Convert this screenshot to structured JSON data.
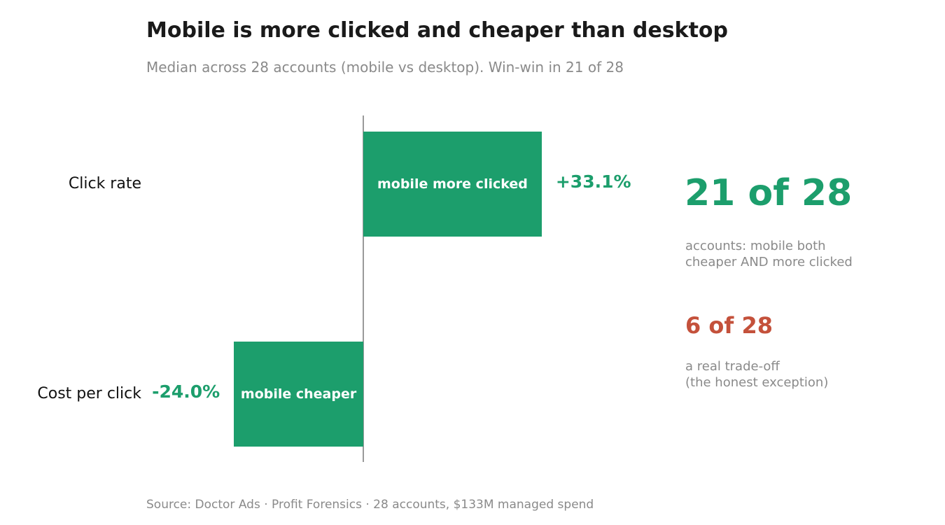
{
  "colors": {
    "positive": "#1c9e6c",
    "exception": "#c4513b",
    "muted": "#8a8a8a",
    "axis": "#9a9a9a"
  },
  "header": {
    "title": "Mobile is more clicked and cheaper than desktop",
    "subtitle": "Median across 28 accounts (mobile vs desktop). Win-win in 21 of 28"
  },
  "chart_data": {
    "type": "bar",
    "orientation": "horizontal",
    "categories": [
      "Click rate",
      "Cost per click"
    ],
    "values": [
      33.1,
      -24.0
    ],
    "value_labels": [
      "+33.1%",
      "-24.0%"
    ],
    "bar_labels": [
      "mobile more clicked",
      "mobile cheaper"
    ],
    "unit": "%",
    "xlim": [
      -50,
      50
    ],
    "grid": false
  },
  "summary": {
    "winwin_count": "21 of 28",
    "winwin_desc_line1": "accounts: mobile both",
    "winwin_desc_line2": "cheaper AND more clicked",
    "tradeoff_count": "6 of 28",
    "tradeoff_desc_line1": "a real trade-off",
    "tradeoff_desc_line2": "(the honest exception)"
  },
  "footer": {
    "source": "Source: Doctor Ads · Profit Forensics · 28 accounts, $133M managed spend"
  }
}
